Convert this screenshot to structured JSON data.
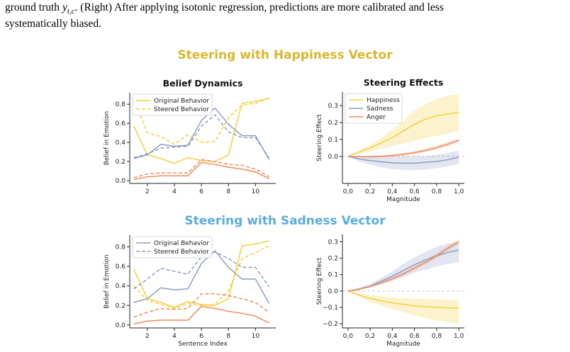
{
  "caption": {
    "line1_prefix": "ground truth ",
    "line1_math": "y",
    "line1_sub": "t,c",
    "line1_suffix": ". (Right) After applying isotonic regression, predictions are more calibrated and less",
    "line2": "systematically biased."
  },
  "sections": [
    {
      "title": "Steering with Happiness Vector",
      "color": "#d9b72e"
    },
    {
      "title": "Steering with Sadness Vector",
      "color": "#5aace0"
    }
  ],
  "colors": {
    "blue": "#8b9dc3",
    "yellow": "#f5cf3a",
    "red": "#f28a5c",
    "axis": "#222222",
    "zero": "#cccccc"
  },
  "chart_data": [
    {
      "type": "line",
      "title": "Belief Dynamics",
      "xlabel": "",
      "ylabel": "Belief in Emotion",
      "xlim": [
        0.7,
        11.5
      ],
      "ylim": [
        -0.03,
        0.92
      ],
      "xticks": [
        2,
        4,
        6,
        8,
        10
      ],
      "yticks": [
        0.0,
        0.2,
        0.4,
        0.6,
        0.8
      ],
      "ytick_labels": [
        "0.0",
        "0.2",
        "0.4",
        "0.6",
        "0.8"
      ],
      "legend": {
        "position": "top-left",
        "entries": [
          {
            "label": "Original Behavior",
            "style": "solid",
            "color": "#f5cf3a"
          },
          {
            "label": "Steered Behavior",
            "style": "dashed",
            "color": "#f5cf3a"
          }
        ]
      },
      "x": [
        1,
        2,
        3,
        4,
        5,
        6,
        7,
        8,
        9,
        10,
        11
      ],
      "series": [
        {
          "color": "#f5cf3a",
          "style": "solid",
          "values": [
            0.57,
            0.27,
            0.23,
            0.18,
            0.24,
            0.21,
            0.2,
            0.27,
            0.81,
            0.83,
            0.86
          ]
        },
        {
          "color": "#8b9dc3",
          "style": "solid",
          "values": [
            0.23,
            0.27,
            0.38,
            0.36,
            0.37,
            0.63,
            0.76,
            0.59,
            0.47,
            0.47,
            0.22
          ]
        },
        {
          "color": "#f28a5c",
          "style": "solid",
          "values": [
            0.01,
            0.04,
            0.05,
            0.05,
            0.05,
            0.19,
            0.17,
            0.14,
            0.12,
            0.09,
            0.02
          ]
        },
        {
          "color": "#f5cf3a",
          "style": "dashed",
          "values": [
            0.85,
            0.5,
            0.46,
            0.38,
            0.48,
            0.4,
            0.41,
            0.66,
            0.79,
            0.81,
            0.87
          ]
        },
        {
          "color": "#8b9dc3",
          "style": "dashed",
          "values": [
            0.24,
            0.28,
            0.34,
            0.35,
            0.36,
            0.57,
            0.69,
            0.51,
            0.45,
            0.45,
            0.24
          ]
        },
        {
          "color": "#f28a5c",
          "style": "dashed",
          "values": [
            0.03,
            0.07,
            0.08,
            0.08,
            0.08,
            0.22,
            0.2,
            0.17,
            0.16,
            0.12,
            0.04
          ]
        }
      ]
    },
    {
      "type": "line",
      "title": "Steering Effects",
      "xlabel": "Magnitude",
      "ylabel": "Steering Effect",
      "xlim": [
        -0.05,
        1.05
      ],
      "ylim": [
        -0.16,
        0.38
      ],
      "xticks": [
        0.0,
        0.2,
        0.4,
        0.6,
        0.8,
        1.0
      ],
      "xtick_labels": [
        "0,0",
        "0,2",
        "0,4",
        "0,6",
        "0,8",
        "1,0"
      ],
      "yticks": [
        0.0,
        0.1,
        0.2,
        0.3
      ],
      "ytick_labels": [
        "0.0",
        "0.1",
        "0.2",
        "0.3"
      ],
      "legend": {
        "position": "top-left",
        "entries": [
          {
            "label": "Happiness",
            "style": "solid",
            "color": "#f5cf3a"
          },
          {
            "label": "Sadness",
            "style": "solid",
            "color": "#8b9dc3"
          },
          {
            "label": "Anger",
            "style": "solid",
            "color": "#f28a5c"
          }
        ]
      },
      "x": [
        0.0,
        0.1,
        0.2,
        0.3,
        0.4,
        0.5,
        0.6,
        0.7,
        0.8,
        0.9,
        1.0
      ],
      "series": [
        {
          "name": "Happiness",
          "color": "#f5cf3a",
          "values": [
            0.0,
            0.025,
            0.05,
            0.08,
            0.11,
            0.15,
            0.19,
            0.22,
            0.24,
            0.25,
            0.26
          ],
          "lower": [
            0.0,
            0.018,
            0.03,
            0.045,
            0.06,
            0.075,
            0.09,
            0.11,
            0.12,
            0.135,
            0.15
          ],
          "upper": [
            0.0,
            0.035,
            0.07,
            0.11,
            0.16,
            0.21,
            0.27,
            0.31,
            0.34,
            0.36,
            0.37
          ]
        },
        {
          "name": "Sadness",
          "color": "#8b9dc3",
          "values": [
            0.0,
            -0.015,
            -0.025,
            -0.032,
            -0.038,
            -0.04,
            -0.04,
            -0.035,
            -0.03,
            -0.02,
            -0.005
          ],
          "lower": [
            0.0,
            -0.03,
            -0.05,
            -0.065,
            -0.075,
            -0.08,
            -0.082,
            -0.078,
            -0.07,
            -0.06,
            -0.045
          ],
          "upper": [
            0.0,
            0.0,
            0.0,
            0.0,
            0.0,
            0.0,
            0.0,
            0.0,
            0.01,
            0.02,
            0.035
          ]
        },
        {
          "name": "Anger",
          "color": "#f28a5c",
          "values": [
            0.0,
            -0.002,
            -0.002,
            0.0,
            0.005,
            0.012,
            0.022,
            0.035,
            0.052,
            0.072,
            0.095
          ],
          "lower": [
            0.0,
            -0.006,
            -0.008,
            -0.006,
            -0.002,
            0.004,
            0.013,
            0.025,
            0.04,
            0.06,
            0.085
          ],
          "upper": [
            0.0,
            0.002,
            0.004,
            0.006,
            0.012,
            0.02,
            0.031,
            0.045,
            0.064,
            0.084,
            0.105
          ]
        }
      ]
    },
    {
      "type": "line",
      "title": "",
      "xlabel": "Sentence Index",
      "ylabel": "Belief in Emotion",
      "xlim": [
        0.7,
        11.5
      ],
      "ylim": [
        -0.03,
        0.92
      ],
      "xticks": [
        2,
        4,
        6,
        8,
        10
      ],
      "yticks": [
        0.0,
        0.2,
        0.4,
        0.6,
        0.8
      ],
      "ytick_labels": [
        "0.0",
        "0.2",
        "0.4",
        "0.6",
        "0.8"
      ],
      "legend": {
        "position": "top-left",
        "entries": [
          {
            "label": "Original Behavior",
            "style": "solid",
            "color": "#8b9dc3"
          },
          {
            "label": "Steered Behavior",
            "style": "dashed",
            "color": "#8b9dc3"
          }
        ]
      },
      "x": [
        1,
        2,
        3,
        4,
        5,
        6,
        7,
        8,
        9,
        10,
        11
      ],
      "series": [
        {
          "color": "#f5cf3a",
          "style": "solid",
          "values": [
            0.57,
            0.27,
            0.23,
            0.18,
            0.24,
            0.21,
            0.2,
            0.27,
            0.81,
            0.83,
            0.86
          ]
        },
        {
          "color": "#8b9dc3",
          "style": "solid",
          "values": [
            0.23,
            0.27,
            0.38,
            0.36,
            0.37,
            0.63,
            0.76,
            0.59,
            0.47,
            0.47,
            0.22
          ]
        },
        {
          "color": "#f28a5c",
          "style": "solid",
          "values": [
            0.01,
            0.04,
            0.05,
            0.05,
            0.05,
            0.19,
            0.17,
            0.14,
            0.12,
            0.09,
            0.02
          ]
        },
        {
          "color": "#f5cf3a",
          "style": "dashed",
          "values": [
            0.4,
            0.25,
            0.21,
            0.17,
            0.22,
            0.2,
            0.21,
            0.35,
            0.68,
            0.74,
            0.81
          ]
        },
        {
          "color": "#8b9dc3",
          "style": "dashed",
          "values": [
            0.37,
            0.47,
            0.58,
            0.55,
            0.52,
            0.7,
            0.75,
            0.68,
            0.59,
            0.59,
            0.39
          ]
        },
        {
          "color": "#f28a5c",
          "style": "dashed",
          "values": [
            0.08,
            0.13,
            0.17,
            0.16,
            0.17,
            0.32,
            0.32,
            0.3,
            0.27,
            0.23,
            0.13
          ]
        }
      ]
    },
    {
      "type": "line",
      "title": "",
      "xlabel": "Magnitude",
      "ylabel": "Steering Effect",
      "xlim": [
        -0.05,
        1.05
      ],
      "ylim": [
        -0.225,
        0.345
      ],
      "xticks": [
        0.0,
        0.2,
        0.4,
        0.6,
        0.8,
        1.0
      ],
      "xtick_labels": [
        "0,0",
        "0,2",
        "0,4",
        "0,6",
        "0,8",
        "1,0"
      ],
      "yticks": [
        -0.2,
        -0.1,
        0.0,
        0.1,
        0.2,
        0.3
      ],
      "ytick_labels": [
        "−0.2",
        "−0.1",
        "0.0",
        "0.1",
        "0.2",
        "0.3"
      ],
      "legend": null,
      "x": [
        0.0,
        0.1,
        0.2,
        0.3,
        0.4,
        0.5,
        0.6,
        0.7,
        0.8,
        0.9,
        1.0
      ],
      "series": [
        {
          "name": "Happiness",
          "color": "#f5cf3a",
          "values": [
            0.0,
            -0.025,
            -0.045,
            -0.06,
            -0.072,
            -0.082,
            -0.09,
            -0.096,
            -0.1,
            -0.103,
            -0.105
          ],
          "lower": [
            0.0,
            -0.035,
            -0.065,
            -0.09,
            -0.11,
            -0.13,
            -0.15,
            -0.165,
            -0.18,
            -0.19,
            -0.2
          ],
          "upper": [
            0.0,
            -0.015,
            -0.025,
            -0.032,
            -0.038,
            -0.042,
            -0.046,
            -0.048,
            -0.05,
            -0.052,
            -0.054
          ]
        },
        {
          "name": "Sadness",
          "color": "#8b9dc3",
          "values": [
            0.0,
            0.012,
            0.03,
            0.06,
            0.09,
            0.125,
            0.16,
            0.19,
            0.215,
            0.235,
            0.25
          ],
          "lower": [
            0.0,
            0.008,
            0.02,
            0.04,
            0.06,
            0.085,
            0.11,
            0.13,
            0.15,
            0.165,
            0.175
          ],
          "upper": [
            0.0,
            0.02,
            0.045,
            0.08,
            0.12,
            0.165,
            0.205,
            0.24,
            0.27,
            0.29,
            0.3
          ]
        },
        {
          "name": "Anger",
          "color": "#f28a5c",
          "values": [
            0.0,
            0.01,
            0.028,
            0.05,
            0.075,
            0.105,
            0.14,
            0.175,
            0.215,
            0.26,
            0.3
          ],
          "lower": [
            0.0,
            0.007,
            0.022,
            0.042,
            0.066,
            0.095,
            0.128,
            0.163,
            0.2,
            0.245,
            0.285
          ],
          "upper": [
            0.0,
            0.013,
            0.034,
            0.058,
            0.084,
            0.115,
            0.152,
            0.187,
            0.23,
            0.275,
            0.315
          ]
        }
      ]
    }
  ]
}
